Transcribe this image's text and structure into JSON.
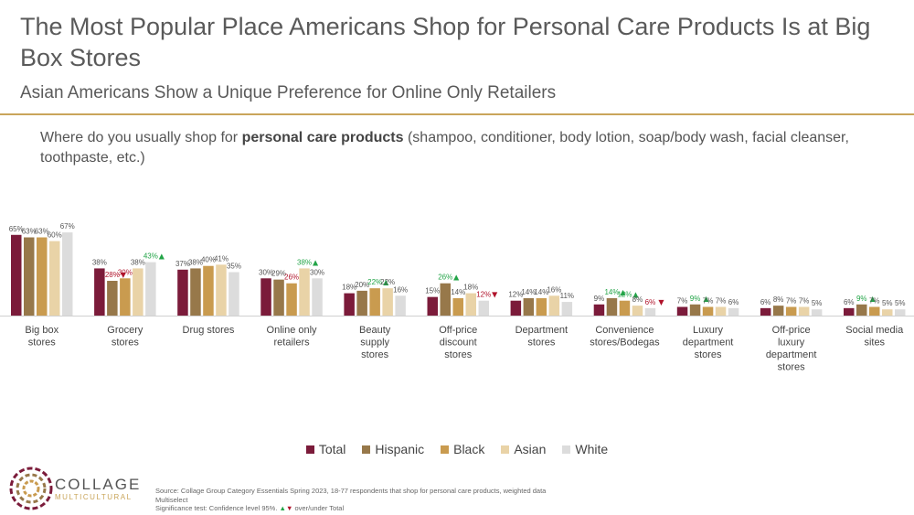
{
  "title": "The Most Popular Place Americans Shop for Personal Care Products Is at Big Box Stores",
  "subtitle": "Asian Americans Show a Unique Preference for Online Only Retailers",
  "question": {
    "prefix": "Where do you usually shop for ",
    "bold": "personal care products",
    "suffix": " (shampoo, conditioner, body lotion, soap/body wash, facial cleanser, toothpaste, etc.)"
  },
  "brand": {
    "name": "COLLAGE",
    "sub": "MULTICULTURAL"
  },
  "source": {
    "line1": "Source: Collage Group Category Essentials Spring 2023, 18-77 respondents that shop for personal care products, weighted data",
    "line2": "Multiselect",
    "line3_prefix": "Significance test: Confidence level 95%.",
    "line3_suffix": "over/under Total",
    "up_glyph": "▲",
    "down_glyph": "▼"
  },
  "colors": {
    "accent_rule": "#c9a55a",
    "up": "#22a447",
    "down": "#b0132b",
    "series": [
      "#7b1b3a",
      "#97784a",
      "#c99b4f",
      "#e9d3a7",
      "#dcdcdc"
    ]
  },
  "chart_data": {
    "type": "bar",
    "categories": [
      "Big box stores",
      "Grocery stores",
      "Drug stores",
      "Online only retailers",
      "Beauty supply stores",
      "Off-price discount stores",
      "Department stores",
      "Convenience stores/Bodegas",
      "Luxury department stores",
      "Off-price luxury department stores",
      "Social media sites"
    ],
    "series": [
      {
        "name": "Total",
        "values": [
          65,
          38,
          37,
          30,
          18,
          15,
          12,
          9,
          7,
          6,
          6
        ]
      },
      {
        "name": "Hispanic",
        "values": [
          63,
          28,
          38,
          29,
          20,
          26,
          14,
          14,
          9,
          8,
          9
        ]
      },
      {
        "name": "Black",
        "values": [
          63,
          30,
          40,
          26,
          22,
          14,
          14,
          12,
          7,
          7,
          7
        ]
      },
      {
        "name": "Asian",
        "values": [
          60,
          38,
          41,
          38,
          22,
          18,
          16,
          8,
          7,
          7,
          5
        ]
      },
      {
        "name": "White",
        "values": [
          67,
          43,
          35,
          30,
          16,
          12,
          11,
          6,
          6,
          5,
          5
        ]
      }
    ],
    "significance": [
      [
        "",
        "",
        "",
        "",
        ""
      ],
      [
        "",
        "down",
        "down",
        "",
        "up"
      ],
      [
        "",
        "",
        "",
        "",
        ""
      ],
      [
        "",
        "",
        "down",
        "up",
        ""
      ],
      [
        "",
        "",
        "up",
        "",
        ""
      ],
      [
        "",
        "up",
        "",
        "",
        "down"
      ],
      [
        "",
        "",
        "",
        "",
        ""
      ],
      [
        "",
        "up",
        "up",
        "",
        "down"
      ],
      [
        "",
        "up",
        "",
        "",
        ""
      ],
      [
        "",
        "",
        "",
        "",
        ""
      ],
      [
        "",
        "up",
        "",
        "",
        ""
      ]
    ],
    "value_suffix": "%",
    "ylim": [
      0,
      70
    ],
    "grid": false,
    "legend_position": "bottom"
  }
}
